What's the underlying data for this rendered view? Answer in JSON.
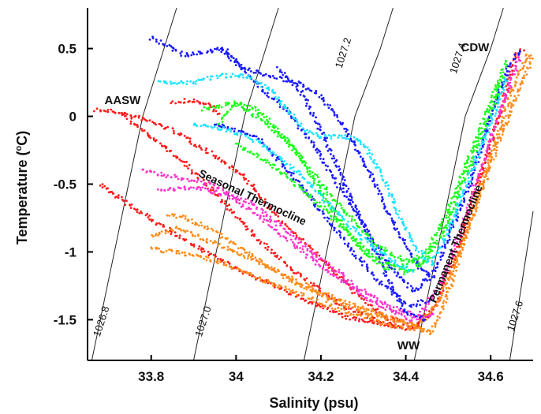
{
  "chart_data": {
    "type": "scatter",
    "title": "",
    "xlabel": "Salinity (psu)",
    "ylabel_main": "Temperature (",
    "ylabel_sup": "o",
    "ylabel_end": "C)",
    "xlim": [
      33.65,
      34.7
    ],
    "ylim": [
      -1.8,
      0.8
    ],
    "x_ticks": [
      {
        "value": 33.8,
        "label": "33.8"
      },
      {
        "value": 34.0,
        "label": "34"
      },
      {
        "value": 34.2,
        "label": "34.2"
      },
      {
        "value": 34.4,
        "label": "34.4"
      },
      {
        "value": 34.6,
        "label": "34.6"
      }
    ],
    "y_ticks": [
      {
        "value": 0.5,
        "label": "0.5"
      },
      {
        "value": 0.0,
        "label": "0"
      },
      {
        "value": -0.5,
        "label": "-0.5"
      },
      {
        "value": -1.0,
        "label": "-1"
      },
      {
        "value": -1.5,
        "label": "-1.5"
      }
    ],
    "grid": false,
    "isopycnals": [
      {
        "label": "1026.8",
        "points": [
          [
            33.66,
            -1.8
          ],
          [
            33.7,
            -1.2
          ],
          [
            33.74,
            -0.6
          ],
          [
            33.78,
            0.0
          ],
          [
            33.83,
            0.5
          ],
          [
            33.86,
            0.8
          ]
        ],
        "label_at": [
          33.69,
          -1.52
        ]
      },
      {
        "label": "1027.0",
        "points": [
          [
            33.9,
            -1.8
          ],
          [
            33.94,
            -1.2
          ],
          [
            33.98,
            -0.6
          ],
          [
            34.02,
            0.0
          ],
          [
            34.07,
            0.5
          ],
          [
            34.1,
            0.8
          ]
        ],
        "label_at": [
          33.93,
          -1.52
        ]
      },
      {
        "label": "1027.2",
        "points": [
          [
            34.16,
            -1.8
          ],
          [
            34.2,
            -1.2
          ],
          [
            34.24,
            -0.6
          ],
          [
            34.28,
            0.0
          ],
          [
            34.34,
            0.5
          ],
          [
            34.37,
            0.8
          ]
        ],
        "label_at": [
          34.26,
          0.46
        ]
      },
      {
        "label": "1027.4",
        "points": [
          [
            34.42,
            -1.8
          ],
          [
            34.46,
            -1.2
          ],
          [
            34.5,
            -0.6
          ],
          [
            34.54,
            0.0
          ],
          [
            34.6,
            0.5
          ],
          [
            34.63,
            0.8
          ]
        ],
        "label_at": [
          34.53,
          0.42
        ]
      },
      {
        "label": "1027.6",
        "points": [
          [
            34.645,
            -1.8
          ],
          [
            34.665,
            -1.4
          ],
          [
            34.685,
            -1.0
          ],
          [
            34.7,
            -0.7
          ]
        ],
        "label_at": [
          34.665,
          -1.48
        ]
      }
    ],
    "annotations": [
      {
        "text": "AASW",
        "x": 33.69,
        "y": 0.09,
        "rotate": 0
      },
      {
        "text": "CDW",
        "x": 34.53,
        "y": 0.48,
        "rotate": 0
      },
      {
        "text": "WW",
        "x": 34.38,
        "y": -1.72,
        "rotate": 0
      },
      {
        "text": "Seasonal Thermocline",
        "x": 33.91,
        "y": -0.44,
        "rotate": 25
      },
      {
        "text": "Permanent Thermocline",
        "x": 34.47,
        "y": -1.38,
        "rotate": -68
      }
    ],
    "series": [
      {
        "color": "#ff1a1a",
        "tracks": [
          [
            [
              33.67,
              0.05
            ],
            [
              33.72,
              0.03
            ],
            [
              33.78,
              -0.02
            ],
            [
              33.85,
              -0.1
            ],
            [
              33.93,
              -0.25
            ],
            [
              34.02,
              -0.45
            ],
            [
              34.1,
              -0.75
            ],
            [
              34.2,
              -1.05
            ],
            [
              34.28,
              -1.3
            ],
            [
              34.35,
              -1.48
            ],
            [
              34.42,
              -1.55
            ],
            [
              34.47,
              -1.4
            ],
            [
              34.52,
              -1.0
            ],
            [
              34.57,
              -0.5
            ],
            [
              34.62,
              0.0
            ],
            [
              34.66,
              0.45
            ],
            [
              34.68,
              0.5
            ]
          ],
          [
            [
              33.73,
              0.02
            ],
            [
              33.8,
              -0.15
            ],
            [
              33.88,
              -0.35
            ],
            [
              33.96,
              -0.6
            ],
            [
              34.05,
              -0.9
            ],
            [
              34.14,
              -1.15
            ],
            [
              34.24,
              -1.38
            ],
            [
              34.33,
              -1.5
            ],
            [
              34.41,
              -1.58
            ],
            [
              34.46,
              -1.45
            ]
          ],
          [
            [
              33.68,
              -0.5
            ],
            [
              33.78,
              -0.72
            ],
            [
              33.9,
              -0.95
            ],
            [
              34.02,
              -1.15
            ],
            [
              34.14,
              -1.32
            ],
            [
              34.26,
              -1.48
            ],
            [
              34.38,
              -1.55
            ]
          ],
          [
            [
              33.85,
              0.1
            ],
            [
              33.89,
              0.12
            ],
            [
              33.94,
              0.08
            ],
            [
              33.96,
              0.0
            ]
          ]
        ]
      },
      {
        "color": "#ff8c1a",
        "tracks": [
          [
            [
              33.8,
              -0.88
            ],
            [
              33.86,
              -0.82
            ],
            [
              33.92,
              -0.9
            ],
            [
              34.0,
              -1.0
            ],
            [
              34.1,
              -1.15
            ],
            [
              34.2,
              -1.3
            ],
            [
              34.3,
              -1.42
            ],
            [
              34.4,
              -1.52
            ],
            [
              34.46,
              -1.6
            ],
            [
              34.5,
              -1.3
            ],
            [
              34.55,
              -0.8
            ],
            [
              34.6,
              -0.3
            ],
            [
              34.65,
              0.2
            ],
            [
              34.69,
              0.48
            ]
          ],
          [
            [
              33.84,
              -0.72
            ],
            [
              33.88,
              -0.75
            ],
            [
              33.95,
              -0.85
            ],
            [
              34.05,
              -1.05
            ],
            [
              34.15,
              -1.25
            ],
            [
              34.26,
              -1.4
            ],
            [
              34.36,
              -1.5
            ],
            [
              34.43,
              -1.55
            ],
            [
              34.48,
              -1.35
            ],
            [
              34.54,
              -0.9
            ],
            [
              34.6,
              -0.35
            ],
            [
              34.66,
              0.15
            ],
            [
              34.7,
              0.45
            ]
          ],
          [
            [
              33.8,
              -0.98
            ],
            [
              33.9,
              -1.02
            ],
            [
              34.0,
              -1.12
            ],
            [
              34.12,
              -1.28
            ],
            [
              34.24,
              -1.42
            ],
            [
              34.36,
              -1.54
            ],
            [
              34.45,
              -1.58
            ]
          ]
        ]
      },
      {
        "color": "#ff33cc",
        "tracks": [
          [
            [
              33.78,
              -0.4
            ],
            [
              33.86,
              -0.45
            ],
            [
              33.94,
              -0.5
            ],
            [
              34.04,
              -0.65
            ],
            [
              34.12,
              -0.85
            ],
            [
              34.2,
              -1.05
            ],
            [
              34.28,
              -1.25
            ],
            [
              34.36,
              -1.4
            ],
            [
              34.43,
              -1.48
            ],
            [
              34.48,
              -1.25
            ],
            [
              34.53,
              -0.85
            ],
            [
              34.58,
              -0.35
            ],
            [
              34.63,
              0.1
            ],
            [
              34.67,
              0.45
            ]
          ],
          [
            [
              33.82,
              -0.55
            ],
            [
              33.9,
              -0.52
            ],
            [
              33.98,
              -0.58
            ],
            [
              34.06,
              -0.75
            ],
            [
              34.15,
              -0.98
            ],
            [
              34.24,
              -1.2
            ],
            [
              34.33,
              -1.38
            ],
            [
              34.41,
              -1.5
            ],
            [
              34.47,
              -1.45
            ]
          ]
        ]
      },
      {
        "color": "#1a1aff",
        "tracks": [
          [
            [
              33.8,
              0.58
            ],
            [
              33.88,
              0.45
            ],
            [
              33.94,
              0.48
            ],
            [
              33.97,
              0.5
            ],
            [
              34.02,
              0.35
            ],
            [
              34.08,
              0.3
            ],
            [
              34.14,
              0.25
            ],
            [
              34.2,
              0.15
            ],
            [
              34.26,
              -0.1
            ],
            [
              34.32,
              -0.45
            ],
            [
              34.38,
              -0.85
            ],
            [
              34.43,
              -1.1
            ],
            [
              34.46,
              -1.2
            ],
            [
              34.5,
              -0.9
            ],
            [
              34.55,
              -0.5
            ],
            [
              34.6,
              0.0
            ],
            [
              34.64,
              0.35
            ],
            [
              34.67,
              0.5
            ]
          ],
          [
            [
              33.96,
              0.5
            ],
            [
              34.0,
              0.4
            ],
            [
              34.06,
              0.2
            ],
            [
              34.12,
              0.05
            ],
            [
              34.18,
              -0.2
            ],
            [
              34.24,
              -0.5
            ],
            [
              34.3,
              -0.8
            ],
            [
              34.36,
              -1.1
            ],
            [
              34.42,
              -1.3
            ],
            [
              34.46,
              -1.15
            ]
          ],
          [
            [
              34.1,
              0.35
            ],
            [
              34.15,
              0.2
            ],
            [
              34.2,
              -0.1
            ],
            [
              34.25,
              -0.45
            ],
            [
              34.3,
              -0.8
            ],
            [
              34.35,
              -1.15
            ],
            [
              34.4,
              -1.45
            ],
            [
              34.45,
              -1.5
            ]
          ],
          [
            [
              33.95,
              -0.05
            ],
            [
              34.05,
              -0.15
            ],
            [
              34.15,
              -0.5
            ],
            [
              34.25,
              -0.9
            ],
            [
              34.33,
              -1.2
            ],
            [
              34.41,
              -1.4
            ],
            [
              34.46,
              -1.35
            ]
          ]
        ]
      },
      {
        "color": "#1aff1a",
        "tracks": [
          [
            [
              33.96,
              -0.05
            ],
            [
              34.0,
              0.1
            ],
            [
              34.05,
              0.05
            ],
            [
              34.1,
              -0.1
            ],
            [
              34.15,
              -0.3
            ],
            [
              34.2,
              -0.55
            ],
            [
              34.25,
              -0.8
            ],
            [
              34.3,
              -1.0
            ],
            [
              34.35,
              -1.12
            ],
            [
              34.4,
              -1.1
            ],
            [
              34.45,
              -1.0
            ],
            [
              34.5,
              -0.7
            ],
            [
              34.55,
              -0.3
            ],
            [
              34.6,
              0.1
            ],
            [
              34.64,
              0.42
            ]
          ],
          [
            [
              33.92,
              0.05
            ],
            [
              34.0,
              0.1
            ],
            [
              34.07,
              -0.05
            ],
            [
              34.14,
              -0.25
            ],
            [
              34.2,
              -0.5
            ],
            [
              34.27,
              -0.75
            ],
            [
              34.33,
              -0.95
            ],
            [
              34.39,
              -1.05
            ],
            [
              34.44,
              -1.08
            ],
            [
              34.49,
              -0.85
            ],
            [
              34.54,
              -0.45
            ],
            [
              34.59,
              -0.05
            ],
            [
              34.63,
              0.3
            ]
          ],
          [
            [
              34.0,
              -0.2
            ],
            [
              34.08,
              -0.35
            ],
            [
              34.16,
              -0.55
            ],
            [
              34.24,
              -0.78
            ],
            [
              34.32,
              -1.02
            ],
            [
              34.4,
              -1.15
            ],
            [
              34.46,
              -1.05
            ]
          ]
        ]
      },
      {
        "color": "#1ae5ff",
        "tracks": [
          [
            [
              33.82,
              0.25
            ],
            [
              33.9,
              0.25
            ],
            [
              33.96,
              0.3
            ],
            [
              34.02,
              0.3
            ],
            [
              34.08,
              0.2
            ],
            [
              34.12,
              0.05
            ],
            [
              34.16,
              -0.1
            ],
            [
              34.2,
              -0.15
            ],
            [
              34.26,
              -0.15
            ],
            [
              34.3,
              -0.2
            ],
            [
              34.34,
              -0.4
            ],
            [
              34.38,
              -0.7
            ],
            [
              34.42,
              -0.95
            ],
            [
              34.46,
              -1.1
            ],
            [
              34.5,
              -0.85
            ],
            [
              34.55,
              -0.45
            ],
            [
              34.6,
              -0.05
            ],
            [
              34.64,
              0.3
            ]
          ],
          [
            [
              33.9,
              -0.05
            ],
            [
              33.98,
              -0.1
            ],
            [
              34.06,
              -0.2
            ],
            [
              34.14,
              -0.4
            ],
            [
              34.22,
              -0.65
            ],
            [
              34.3,
              -0.9
            ],
            [
              34.36,
              -1.05
            ],
            [
              34.42,
              -1.15
            ]
          ]
        ]
      }
    ]
  }
}
